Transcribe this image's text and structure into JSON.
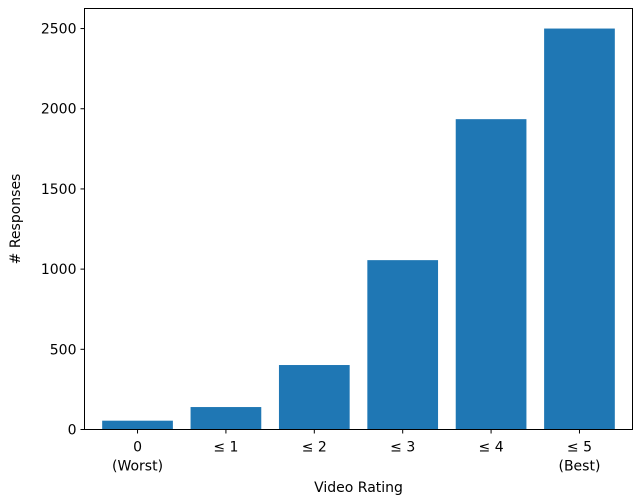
{
  "chart_data": {
    "type": "bar",
    "categories": [
      "0\n(Worst)",
      "≤ 1",
      "≤ 2",
      "≤ 3",
      "≤ 4",
      "≤ 5\n(Best)"
    ],
    "values": [
      55,
      140,
      402,
      1056,
      1935,
      2500
    ],
    "title": "",
    "xlabel": "Video Rating",
    "ylabel": "# Responses",
    "ylim": [
      0,
      2625
    ],
    "yticks": [
      0,
      500,
      1000,
      1500,
      2000,
      2500
    ],
    "bar_color": "#1f77b4",
    "grid": false
  }
}
